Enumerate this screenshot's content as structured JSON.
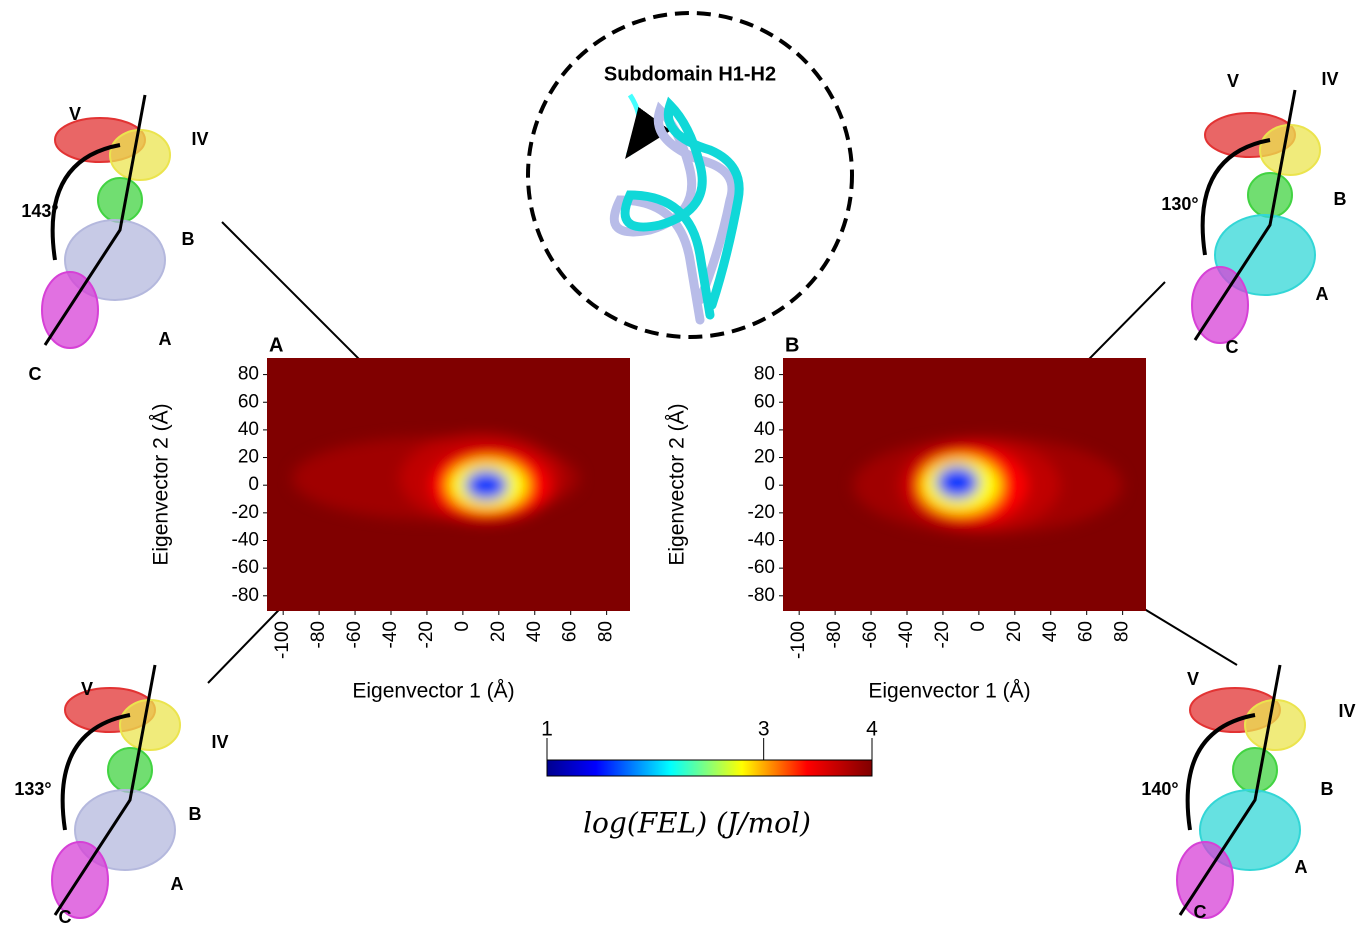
{
  "chart_data": [
    {
      "type": "heatmap",
      "panel_label": "A",
      "xlabel": "Eigenvector 1 (Å)",
      "ylabel": "Eigenvector 2 (Å)",
      "xlim": [
        -109,
        93
      ],
      "ylim": [
        -91,
        92
      ],
      "xticks": [
        -100,
        -80,
        -60,
        -40,
        -20,
        0,
        20,
        40,
        60,
        80
      ],
      "yticks": [
        -80,
        -60,
        -40,
        -20,
        0,
        20,
        40,
        60,
        80
      ],
      "background_level": 4,
      "contours": [
        {
          "level": 3.85,
          "cx": -15,
          "cy": 5,
          "rx": 80,
          "ry": 30
        },
        {
          "level": 3.7,
          "cx": 10,
          "cy": 5,
          "rx": 45,
          "ry": 32
        },
        {
          "level": 3.4,
          "cx": 15,
          "cy": 0,
          "rx": 33,
          "ry": 25
        },
        {
          "level": 2.8,
          "cx": 14,
          "cy": 0,
          "rx": 22,
          "ry": 18
        },
        {
          "level": 1.6,
          "cx": 13,
          "cy": 0,
          "rx": 12,
          "ry": 11
        }
      ]
    },
    {
      "type": "heatmap",
      "panel_label": "B",
      "xlabel": "Eigenvector 1 (Å)",
      "ylabel": "Eigenvector 2 (Å)",
      "xlim": [
        -109,
        93
      ],
      "ylim": [
        -91,
        92
      ],
      "xticks": [
        -100,
        -80,
        -60,
        -40,
        -20,
        0,
        20,
        40,
        60,
        80
      ],
      "yticks": [
        -80,
        -60,
        -40,
        -20,
        0,
        20,
        40,
        60,
        80
      ],
      "background_level": 4,
      "contours": [
        {
          "level": 3.85,
          "cx": 5,
          "cy": 0,
          "rx": 75,
          "ry": 35
        },
        {
          "level": 3.7,
          "cx": 0,
          "cy": 0,
          "rx": 45,
          "ry": 33
        },
        {
          "level": 3.4,
          "cx": -5,
          "cy": 0,
          "rx": 32,
          "ry": 27
        },
        {
          "level": 2.8,
          "cx": -10,
          "cy": 0,
          "rx": 22,
          "ry": 20
        },
        {
          "level": 1.6,
          "cx": -12,
          "cy": 2,
          "rx": 12,
          "ry": 12
        }
      ]
    }
  ],
  "colorbar": {
    "label": "log(FEL) (J/mol)",
    "lim": [
      1,
      4
    ],
    "ticks": [
      1,
      3,
      4
    ]
  },
  "inset": {
    "title": "Subdomain H1-H2"
  },
  "structures": [
    {
      "angle": "143°",
      "labels": [
        "V",
        "IV",
        "B",
        "A",
        "C"
      ]
    },
    {
      "angle": "133°",
      "labels": [
        "V",
        "IV",
        "B",
        "A",
        "C"
      ]
    },
    {
      "angle": "130°",
      "labels": [
        "V",
        "IV",
        "B",
        "A",
        "C"
      ]
    },
    {
      "angle": "140°",
      "labels": [
        "V",
        "IV",
        "B",
        "A",
        "C"
      ]
    }
  ]
}
